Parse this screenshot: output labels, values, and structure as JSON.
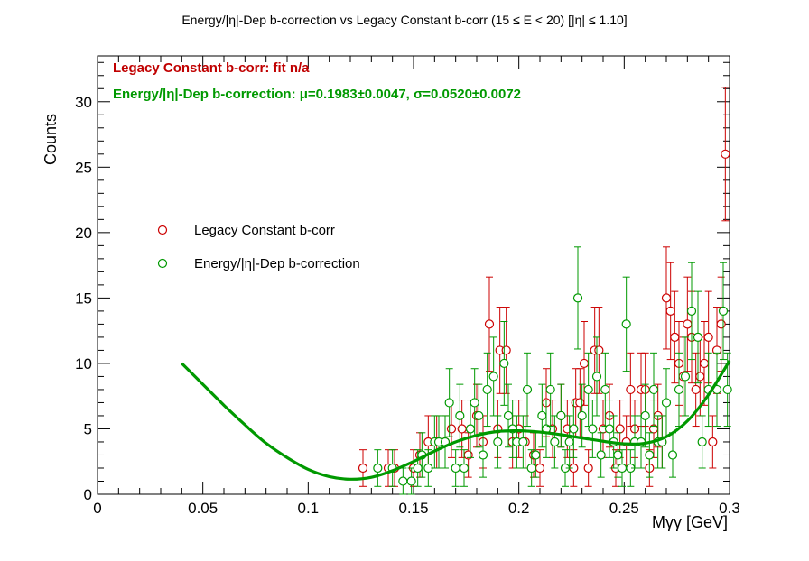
{
  "chart_data": {
    "type": "scatter",
    "title": "Energy/|η|-Dep b-correction vs Legacy Constant b-corr   (15 ≤ E < 20)   [|η| ≤ 1.10]",
    "xlabel": "Mγγ [GeV]",
    "ylabel": "Counts",
    "xlim": [
      0,
      0.3
    ],
    "ylim": [
      0,
      33.5
    ],
    "x_ticks": [
      0,
      0.05,
      0.1,
      0.15,
      0.2,
      0.25,
      0.3
    ],
    "x_tick_labels": [
      "0",
      "0.05",
      "0.1",
      "0.15",
      "0.2",
      "0.25",
      "0.3"
    ],
    "y_ticks": [
      0,
      5,
      10,
      15,
      20,
      25,
      30
    ],
    "y_tick_labels": [
      "0",
      "5",
      "10",
      "15",
      "20",
      "25",
      "30"
    ],
    "legend_position": "center-left",
    "fit_labels": [
      "Legacy Constant b-corr:  fit n/a",
      "Energy/|η|-Dep b-correction: μ=0.1983±0.0047, σ=0.0520±0.0072"
    ],
    "series": [
      {
        "name": "Legacy Constant b-corr",
        "color": "#cc0000",
        "marker": "open-circle",
        "points": [
          [
            0.126,
            2
          ],
          [
            0.138,
            2
          ],
          [
            0.141,
            2
          ],
          [
            0.15,
            2
          ],
          [
            0.153,
            3
          ],
          [
            0.157,
            4
          ],
          [
            0.161,
            4
          ],
          [
            0.165,
            4
          ],
          [
            0.168,
            5
          ],
          [
            0.173,
            5
          ],
          [
            0.176,
            3
          ],
          [
            0.18,
            6
          ],
          [
            0.183,
            4
          ],
          [
            0.186,
            13
          ],
          [
            0.19,
            5
          ],
          [
            0.191,
            11
          ],
          [
            0.194,
            11
          ],
          [
            0.197,
            4
          ],
          [
            0.2,
            5
          ],
          [
            0.203,
            4
          ],
          [
            0.207,
            3
          ],
          [
            0.21,
            2
          ],
          [
            0.213,
            7
          ],
          [
            0.216,
            5
          ],
          [
            0.22,
            6
          ],
          [
            0.223,
            5
          ],
          [
            0.226,
            2
          ],
          [
            0.227,
            7
          ],
          [
            0.229,
            7
          ],
          [
            0.231,
            10
          ],
          [
            0.233,
            2
          ],
          [
            0.236,
            11
          ],
          [
            0.238,
            11
          ],
          [
            0.24,
            5
          ],
          [
            0.243,
            6
          ],
          [
            0.246,
            2
          ],
          [
            0.248,
            5
          ],
          [
            0.251,
            4
          ],
          [
            0.253,
            8
          ],
          [
            0.255,
            5
          ],
          [
            0.258,
            8
          ],
          [
            0.26,
            8
          ],
          [
            0.262,
            2
          ],
          [
            0.264,
            5
          ],
          [
            0.266,
            6
          ],
          [
            0.268,
            4
          ],
          [
            0.27,
            15
          ],
          [
            0.272,
            14
          ],
          [
            0.274,
            12
          ],
          [
            0.276,
            10
          ],
          [
            0.278,
            9
          ],
          [
            0.28,
            13
          ],
          [
            0.282,
            12
          ],
          [
            0.284,
            8
          ],
          [
            0.286,
            9
          ],
          [
            0.288,
            10
          ],
          [
            0.29,
            12
          ],
          [
            0.292,
            4
          ],
          [
            0.294,
            11
          ],
          [
            0.296,
            13
          ],
          [
            0.298,
            26
          ]
        ],
        "errors": [
          1.4,
          1.4,
          1.4,
          1.4,
          1.7,
          2,
          2,
          2,
          2.2,
          2.2,
          1.7,
          2.4,
          2,
          3.6,
          2.2,
          3.3,
          3.3,
          2,
          2.2,
          2,
          1.7,
          1.4,
          2.6,
          2.2,
          2.4,
          2.2,
          1.4,
          2.6,
          2.6,
          3.2,
          1.4,
          3.3,
          3.3,
          2.2,
          2.4,
          1.4,
          2.2,
          2,
          2.8,
          2.2,
          2.8,
          2.8,
          1.4,
          2.2,
          2.4,
          2,
          3.9,
          3.7,
          3.5,
          3.2,
          3,
          3.6,
          3.5,
          2.8,
          3,
          3.2,
          3.5,
          2,
          3.3,
          3.6,
          5.1
        ]
      },
      {
        "name": "Energy/|η|-Dep b-correction",
        "color": "#009900",
        "marker": "open-circle",
        "points": [
          [
            0.133,
            2
          ],
          [
            0.14,
            2
          ],
          [
            0.145,
            1
          ],
          [
            0.149,
            1
          ],
          [
            0.152,
            2
          ],
          [
            0.154,
            3
          ],
          [
            0.157,
            2
          ],
          [
            0.16,
            4
          ],
          [
            0.162,
            4
          ],
          [
            0.165,
            4
          ],
          [
            0.167,
            7
          ],
          [
            0.17,
            2
          ],
          [
            0.172,
            6
          ],
          [
            0.174,
            2
          ],
          [
            0.177,
            5
          ],
          [
            0.179,
            7
          ],
          [
            0.181,
            6
          ],
          [
            0.183,
            3
          ],
          [
            0.185,
            8
          ],
          [
            0.188,
            9
          ],
          [
            0.19,
            4
          ],
          [
            0.193,
            10
          ],
          [
            0.195,
            6
          ],
          [
            0.197,
            5
          ],
          [
            0.199,
            4
          ],
          [
            0.202,
            4
          ],
          [
            0.204,
            8
          ],
          [
            0.206,
            2
          ],
          [
            0.208,
            3
          ],
          [
            0.211,
            6
          ],
          [
            0.213,
            5
          ],
          [
            0.215,
            8
          ],
          [
            0.217,
            4
          ],
          [
            0.22,
            6
          ],
          [
            0.222,
            2
          ],
          [
            0.224,
            4
          ],
          [
            0.226,
            5
          ],
          [
            0.228,
            15
          ],
          [
            0.23,
            6
          ],
          [
            0.233,
            8
          ],
          [
            0.235,
            5
          ],
          [
            0.237,
            9
          ],
          [
            0.239,
            3
          ],
          [
            0.241,
            8
          ],
          [
            0.243,
            5
          ],
          [
            0.245,
            4
          ],
          [
            0.247,
            3
          ],
          [
            0.249,
            2
          ],
          [
            0.251,
            13
          ],
          [
            0.253,
            2
          ],
          [
            0.255,
            4
          ],
          [
            0.258,
            4
          ],
          [
            0.26,
            6
          ],
          [
            0.262,
            3
          ],
          [
            0.264,
            8
          ],
          [
            0.266,
            4
          ],
          [
            0.268,
            4
          ],
          [
            0.27,
            7
          ],
          [
            0.273,
            3
          ],
          [
            0.276,
            8
          ],
          [
            0.279,
            9
          ],
          [
            0.282,
            14
          ],
          [
            0.285,
            12
          ],
          [
            0.287,
            4
          ],
          [
            0.29,
            8
          ],
          [
            0.294,
            8
          ],
          [
            0.297,
            14
          ],
          [
            0.299,
            8
          ]
        ],
        "errors": [
          1.4,
          1.4,
          1,
          1,
          1.4,
          1.7,
          1.4,
          2,
          2,
          2,
          2.6,
          1.4,
          2.4,
          1.4,
          2.2,
          2.6,
          2.4,
          1.7,
          2.8,
          3,
          2,
          3.2,
          2.4,
          2.2,
          2,
          2,
          2.8,
          1.4,
          1.7,
          2.4,
          2.2,
          2.8,
          2,
          2.4,
          1.4,
          2,
          2.2,
          3.9,
          2.4,
          2.8,
          2.2,
          3,
          1.7,
          2.8,
          2.2,
          2,
          1.7,
          1.4,
          3.6,
          1.4,
          2,
          2,
          2.4,
          1.7,
          2.8,
          2,
          2,
          2.6,
          1.7,
          2.8,
          3,
          3.7,
          3.5,
          2,
          2.8,
          2.8,
          3.7,
          2.8
        ]
      }
    ],
    "fit_curve": {
      "name": "Energy/|η|-Dep b-correction fit",
      "color": "#009900",
      "x": [
        0.04,
        0.05,
        0.06,
        0.07,
        0.08,
        0.09,
        0.1,
        0.11,
        0.12,
        0.13,
        0.14,
        0.15,
        0.16,
        0.17,
        0.18,
        0.19,
        0.2,
        0.21,
        0.22,
        0.23,
        0.24,
        0.25,
        0.26,
        0.27,
        0.28,
        0.29,
        0.3
      ],
      "y": [
        10.0,
        8.4,
        6.8,
        5.3,
        3.9,
        2.8,
        1.9,
        1.35,
        1.15,
        1.3,
        1.8,
        2.5,
        3.3,
        4.0,
        4.5,
        4.8,
        4.85,
        4.75,
        4.55,
        4.3,
        4.05,
        3.85,
        3.9,
        4.4,
        5.6,
        7.6,
        10.2
      ]
    }
  }
}
